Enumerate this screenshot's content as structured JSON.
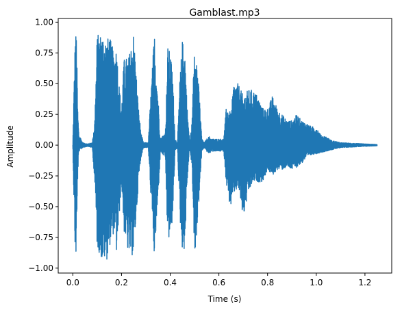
{
  "chart_data": {
    "type": "line",
    "title": "Gamblast.mp3",
    "xlabel": "Time (s)",
    "ylabel": "Amplitude",
    "xlim": [
      -0.06,
      1.31
    ],
    "ylim": [
      -1.04,
      1.03
    ],
    "grid": false,
    "legend": "none",
    "x_ticks": [
      0.0,
      0.2,
      0.4,
      0.6,
      0.8,
      1.0,
      1.2
    ],
    "x_tick_labels": [
      "0.0",
      "0.2",
      "0.4",
      "0.6",
      "0.8",
      "1.0",
      "1.2"
    ],
    "y_ticks": [
      1.0,
      0.75,
      0.5,
      0.25,
      0.0,
      -0.25,
      -0.5,
      -0.75,
      -1.0
    ],
    "y_tick_labels": [
      "1.00",
      "0.75",
      "0.50",
      "0.25",
      "0.00",
      "−0.25",
      "−0.50",
      "−0.75",
      "−1.00"
    ],
    "series": [
      {
        "color": "#1f77b4",
        "duration_s": 1.25,
        "envelope_pos": [
          [
            0.0,
            0.0
          ],
          [
            0.005,
            0.5
          ],
          [
            0.01,
            0.9
          ],
          [
            0.015,
            0.92
          ],
          [
            0.02,
            0.3
          ],
          [
            0.025,
            0.08
          ],
          [
            0.03,
            0.07
          ],
          [
            0.04,
            0.02
          ],
          [
            0.06,
            0.01
          ],
          [
            0.08,
            0.02
          ],
          [
            0.09,
            0.2
          ],
          [
            0.1,
            0.9
          ],
          [
            0.12,
            0.91
          ],
          [
            0.14,
            0.86
          ],
          [
            0.15,
            0.89
          ],
          [
            0.17,
            0.75
          ],
          [
            0.18,
            0.8
          ],
          [
            0.19,
            0.5
          ],
          [
            0.2,
            0.3
          ],
          [
            0.21,
            0.7
          ],
          [
            0.23,
            0.72
          ],
          [
            0.25,
            0.92
          ],
          [
            0.26,
            0.6
          ],
          [
            0.27,
            0.3
          ],
          [
            0.28,
            0.1
          ],
          [
            0.29,
            0.02
          ],
          [
            0.31,
            0.02
          ],
          [
            0.32,
            0.4
          ],
          [
            0.335,
            0.92
          ],
          [
            0.35,
            0.4
          ],
          [
            0.36,
            0.05
          ],
          [
            0.37,
            0.08
          ],
          [
            0.38,
            0.1
          ],
          [
            0.39,
            0.8
          ],
          [
            0.4,
            0.75
          ],
          [
            0.41,
            0.6
          ],
          [
            0.42,
            0.05
          ],
          [
            0.43,
            0.02
          ],
          [
            0.44,
            0.55
          ],
          [
            0.45,
            0.85
          ],
          [
            0.46,
            0.8
          ],
          [
            0.47,
            0.3
          ],
          [
            0.48,
            0.02
          ],
          [
            0.49,
            0.2
          ],
          [
            0.5,
            0.9
          ],
          [
            0.51,
            0.7
          ],
          [
            0.52,
            0.4
          ],
          [
            0.53,
            0.05
          ],
          [
            0.54,
            0.02
          ],
          [
            0.55,
            0.05
          ],
          [
            0.56,
            0.07
          ],
          [
            0.57,
            0.05
          ],
          [
            0.6,
            0.05
          ],
          [
            0.62,
            0.05
          ],
          [
            0.63,
            0.3
          ],
          [
            0.64,
            0.3
          ],
          [
            0.65,
            0.25
          ],
          [
            0.66,
            0.5
          ],
          [
            0.68,
            0.5
          ],
          [
            0.7,
            0.4
          ],
          [
            0.72,
            0.45
          ],
          [
            0.74,
            0.45
          ],
          [
            0.76,
            0.4
          ],
          [
            0.78,
            0.3
          ],
          [
            0.8,
            0.3
          ],
          [
            0.82,
            0.4
          ],
          [
            0.84,
            0.3
          ],
          [
            0.86,
            0.25
          ],
          [
            0.88,
            0.2
          ],
          [
            0.9,
            0.2
          ],
          [
            0.92,
            0.25
          ],
          [
            0.94,
            0.2
          ],
          [
            0.96,
            0.18
          ],
          [
            0.98,
            0.15
          ],
          [
            1.0,
            0.15
          ],
          [
            1.02,
            0.08
          ],
          [
            1.04,
            0.07
          ],
          [
            1.06,
            0.04
          ],
          [
            1.1,
            0.02
          ],
          [
            1.15,
            0.015
          ],
          [
            1.2,
            0.01
          ],
          [
            1.25,
            0.005
          ]
        ],
        "envelope_neg": [
          [
            0.0,
            0.0
          ],
          [
            0.005,
            0.5
          ],
          [
            0.01,
            0.91
          ],
          [
            0.015,
            0.91
          ],
          [
            0.02,
            0.25
          ],
          [
            0.025,
            0.05
          ],
          [
            0.03,
            0.04
          ],
          [
            0.04,
            0.02
          ],
          [
            0.06,
            0.01
          ],
          [
            0.08,
            0.02
          ],
          [
            0.09,
            0.3
          ],
          [
            0.1,
            0.83
          ],
          [
            0.12,
            0.94
          ],
          [
            0.14,
            0.93
          ],
          [
            0.15,
            0.83
          ],
          [
            0.17,
            0.7
          ],
          [
            0.18,
            0.89
          ],
          [
            0.19,
            0.6
          ],
          [
            0.2,
            0.3
          ],
          [
            0.21,
            0.7
          ],
          [
            0.23,
            0.9
          ],
          [
            0.25,
            0.9
          ],
          [
            0.26,
            0.6
          ],
          [
            0.27,
            0.3
          ],
          [
            0.28,
            0.1
          ],
          [
            0.29,
            0.02
          ],
          [
            0.31,
            0.02
          ],
          [
            0.32,
            0.4
          ],
          [
            0.335,
            0.93
          ],
          [
            0.35,
            0.45
          ],
          [
            0.36,
            0.05
          ],
          [
            0.37,
            0.08
          ],
          [
            0.38,
            0.1
          ],
          [
            0.39,
            0.8
          ],
          [
            0.4,
            0.75
          ],
          [
            0.41,
            0.6
          ],
          [
            0.42,
            0.05
          ],
          [
            0.43,
            0.02
          ],
          [
            0.44,
            0.6
          ],
          [
            0.45,
            0.85
          ],
          [
            0.46,
            0.85
          ],
          [
            0.47,
            0.3
          ],
          [
            0.48,
            0.02
          ],
          [
            0.49,
            0.2
          ],
          [
            0.5,
            0.93
          ],
          [
            0.51,
            0.7
          ],
          [
            0.52,
            0.4
          ],
          [
            0.53,
            0.05
          ],
          [
            0.54,
            0.02
          ],
          [
            0.55,
            0.05
          ],
          [
            0.56,
            0.07
          ],
          [
            0.57,
            0.05
          ],
          [
            0.6,
            0.05
          ],
          [
            0.62,
            0.05
          ],
          [
            0.63,
            0.3
          ],
          [
            0.64,
            0.45
          ],
          [
            0.65,
            0.5
          ],
          [
            0.66,
            0.4
          ],
          [
            0.68,
            0.35
          ],
          [
            0.7,
            0.6
          ],
          [
            0.72,
            0.4
          ],
          [
            0.74,
            0.3
          ],
          [
            0.76,
            0.3
          ],
          [
            0.78,
            0.3
          ],
          [
            0.8,
            0.2
          ],
          [
            0.82,
            0.25
          ],
          [
            0.84,
            0.2
          ],
          [
            0.86,
            0.2
          ],
          [
            0.88,
            0.18
          ],
          [
            0.9,
            0.2
          ],
          [
            0.92,
            0.18
          ],
          [
            0.94,
            0.15
          ],
          [
            0.96,
            0.1
          ],
          [
            0.98,
            0.08
          ],
          [
            1.0,
            0.07
          ],
          [
            1.02,
            0.06
          ],
          [
            1.04,
            0.05
          ],
          [
            1.06,
            0.04
          ],
          [
            1.1,
            0.02
          ],
          [
            1.15,
            0.015
          ],
          [
            1.2,
            0.01
          ],
          [
            1.25,
            0.005
          ]
        ]
      }
    ]
  }
}
